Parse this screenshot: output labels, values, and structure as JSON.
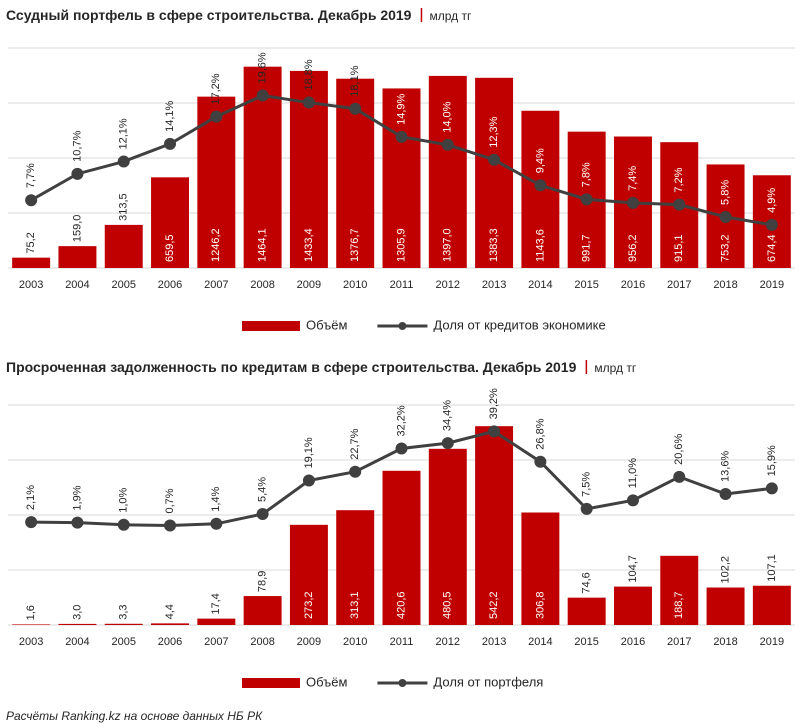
{
  "chart_data": [
    {
      "type": "combo",
      "title": "Ссудный портфель в сфере строительства. Декабрь 2019",
      "unit": "млрд тг",
      "categories": [
        "2003",
        "2004",
        "2005",
        "2006",
        "2007",
        "2008",
        "2009",
        "2010",
        "2011",
        "2012",
        "2013",
        "2014",
        "2015",
        "2016",
        "2017",
        "2018",
        "2019"
      ],
      "series": [
        {
          "name": "Объём",
          "color": "#c00000",
          "values": [
            75.2,
            159.0,
            313.5,
            659.5,
            1246.2,
            1464.1,
            1433.4,
            1376.7,
            1305.9,
            1397.0,
            1383.3,
            1143.6,
            991.7,
            956.2,
            915.1,
            753.2,
            674.4
          ],
          "value_labels": [
            "75,2",
            "159,0",
            "313,5",
            "659,5",
            "1246,2",
            "1464,1",
            "1433,4",
            "1376,7",
            "1305,9",
            "1397,0",
            "1383,3",
            "1143,6",
            "991,7",
            "956,2",
            "915,1",
            "753,2",
            "674,4"
          ]
        },
        {
          "name": "Доля от кредитов экономике",
          "color": "#404040",
          "axis": "y2",
          "values": [
            7.7,
            10.7,
            12.1,
            14.1,
            17.2,
            19.6,
            18.8,
            18.1,
            14.9,
            14.0,
            12.3,
            9.4,
            7.8,
            7.4,
            7.2,
            5.8,
            4.9
          ],
          "value_labels": [
            "7,7%",
            "10,7%",
            "12,1%",
            "14,1%",
            "17,2%",
            "19,6%",
            "18,8%",
            "18,1%",
            "14,9%",
            "14,0%",
            "12,3%",
            "9,4%",
            "7,8%",
            "7,4%",
            "7,2%",
            "5,8%",
            "4,9%"
          ]
        }
      ],
      "ylim": [
        0,
        1600
      ],
      "yticks": [
        0,
        400,
        800,
        1200,
        1600
      ],
      "y2lim": [
        0,
        25
      ],
      "grid": true
    },
    {
      "type": "combo",
      "title": "Просроченная задолженность по кредитам в сфере строительства. Декабрь 2019",
      "unit": "млрд тг",
      "categories": [
        "2003",
        "2004",
        "2005",
        "2006",
        "2007",
        "2008",
        "2009",
        "2010",
        "2011",
        "2012",
        "2013",
        "2014",
        "2015",
        "2016",
        "2017",
        "2018",
        "2019"
      ],
      "series": [
        {
          "name": "Объём",
          "color": "#c00000",
          "values": [
            1.6,
            3.0,
            3.3,
            4.4,
            17.4,
            78.9,
            273.2,
            313.1,
            420.6,
            480.5,
            542.2,
            306.8,
            74.6,
            104.7,
            188.7,
            102.2,
            107.1
          ],
          "value_labels": [
            "1,6",
            "3,0",
            "3,3",
            "4,4",
            "17,4",
            "78,9",
            "273,2",
            "313,1",
            "420,6",
            "480,5",
            "542,2",
            "306,8",
            "74,6",
            "104,7",
            "188,7",
            "102,2",
            "107,1"
          ]
        },
        {
          "name": "Доля от портфеля",
          "color": "#404040",
          "axis": "y2",
          "values": [
            2.1,
            1.9,
            1.0,
            0.7,
            1.4,
            5.4,
            19.1,
            22.7,
            32.2,
            34.4,
            39.2,
            26.8,
            7.5,
            11.0,
            20.6,
            13.6,
            15.9
          ],
          "value_labels": [
            "2,1%",
            "1,9%",
            "1,0%",
            "0,7%",
            "1,4%",
            "5,4%",
            "19,1%",
            "22,7%",
            "32,2%",
            "34,4%",
            "39,2%",
            "26,8%",
            "7,5%",
            "11,0%",
            "20,6%",
            "13,6%",
            "15,9%"
          ]
        }
      ],
      "ylim": [
        0,
        600
      ],
      "yticks": [
        0,
        150,
        300,
        450,
        600
      ],
      "y2lim": [
        -40,
        50
      ],
      "grid": true
    }
  ],
  "footer": "Расчёты Ranking.kz на основе данных НБ РК"
}
